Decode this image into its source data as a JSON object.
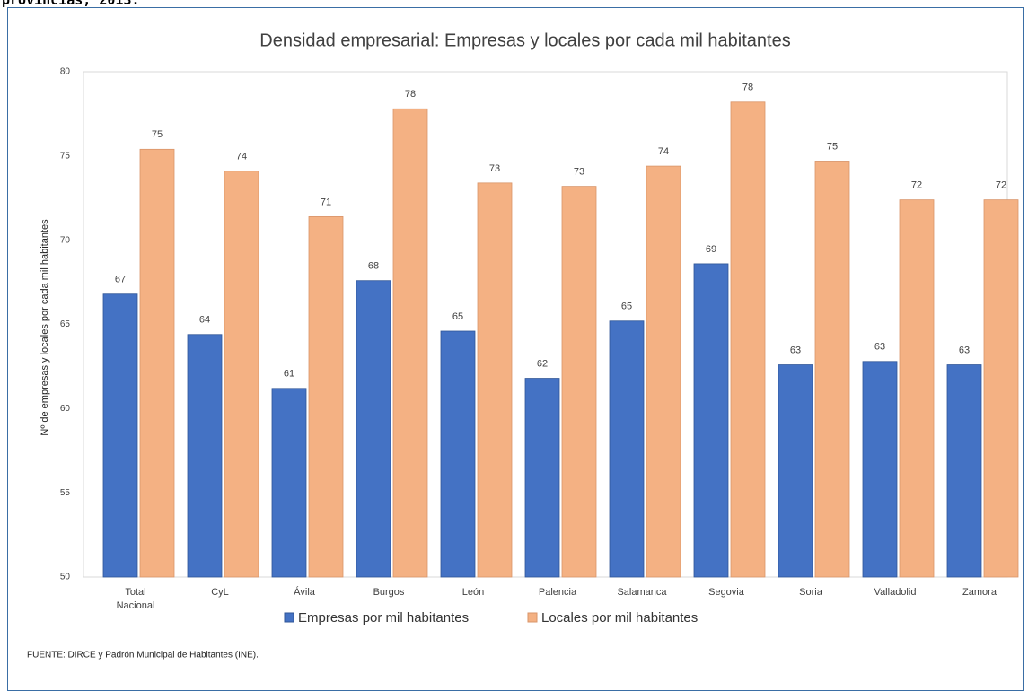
{
  "header": "provincias, 2013.",
  "chart_data": {
    "type": "bar",
    "title": "Densidad empresarial: Empresas y locales por cada mil habitantes",
    "y_label": "Nº de empresas y locales por cada mil habitantes",
    "categories": [
      "Total Nacional",
      "CyL",
      "Ávila",
      "Burgos",
      "León",
      "Palencia",
      "Salamanca",
      "Segovia",
      "Soria",
      "Valladolid",
      "Zamora"
    ],
    "series": [
      {
        "name": "Empresas por mil habitantes",
        "color": "#4472c4",
        "values": [
          66.8,
          64.4,
          61.2,
          67.6,
          64.6,
          61.8,
          65.2,
          68.6,
          62.6,
          62.8,
          62.6
        ],
        "value_labels": [
          "67",
          "64",
          "61",
          "68",
          "65",
          "62",
          "65",
          "69",
          "63",
          "63",
          "63"
        ]
      },
      {
        "name": "Locales por mil habitantes",
        "color": "#f4b183",
        "values": [
          75.4,
          74.1,
          71.4,
          77.8,
          73.4,
          73.2,
          74.4,
          78.2,
          74.7,
          72.4,
          72.4
        ],
        "value_labels": [
          "75",
          "74",
          "71",
          "78",
          "73",
          "73",
          "74",
          "78",
          "75",
          "72",
          "72"
        ]
      }
    ],
    "ylim": [
      50,
      80
    ],
    "yticks": [
      50,
      55,
      60,
      65,
      70,
      75,
      80
    ],
    "grid": false,
    "legend": "bottom"
  },
  "footer": "FUENTE: DIRCE y Padrón Municipal de Habitantes (INE)."
}
